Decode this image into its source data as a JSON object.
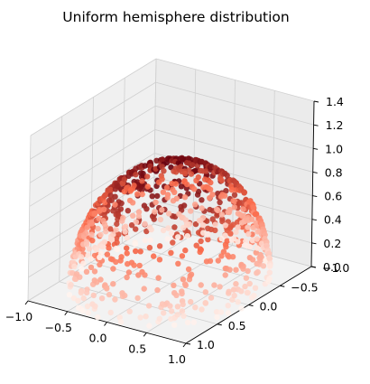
{
  "chart_data": {
    "type": "scatter",
    "projection": "3d",
    "title": "Uniform hemisphere distribution",
    "xlabel": "",
    "ylabel": "",
    "zlabel": "",
    "xlim": [
      -1.0,
      1.0
    ],
    "ylim": [
      -1.0,
      1.0
    ],
    "zlim": [
      0.0,
      1.4
    ],
    "x_ticks": [
      "−1.0",
      "−0.5",
      "0.0",
      "0.5",
      "1.0"
    ],
    "y_ticks": [
      "−1.0",
      "−0.5",
      "0.0",
      "0.5",
      "1.0"
    ],
    "z_ticks": [
      "0.0",
      "0.2",
      "0.4",
      "0.6",
      "0.8",
      "1.0",
      "1.2",
      "1.4"
    ],
    "grid": true,
    "legend": "none",
    "colormap": "Reds",
    "color_by": "z",
    "surface": "unit hemisphere x²+y²+z²=1, z≥0",
    "point_count": 900,
    "colors": {
      "pane_left": "#f0f0f0",
      "pane_back": "#ebebeb",
      "pane_floor": "#f2f2f2",
      "grid": "#d0d0d0",
      "cmap_low": "#fff5f0",
      "cmap_mid": "#fb6a4a",
      "cmap_high": "#67000d"
    }
  }
}
